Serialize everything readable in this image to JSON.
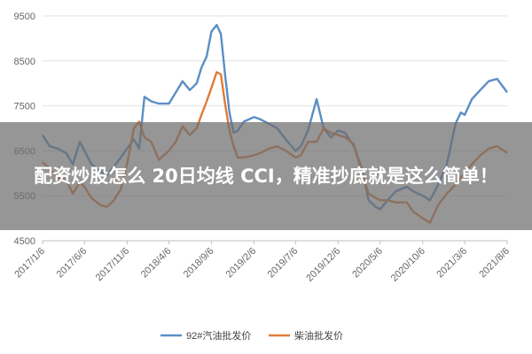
{
  "headline": "配资炒股怎么 20日均线 CCI，精准抄底就是这么简单！",
  "chart_data": {
    "type": "line",
    "ylim": [
      4500,
      9500
    ],
    "yticks": [
      4500,
      5500,
      6500,
      7500,
      8500,
      9500
    ],
    "xlim": [
      "2017-01-06",
      "2021-08-06"
    ],
    "xticks": [
      "2017/1/6",
      "2017/6/6",
      "2017/11/6",
      "2018/4/6",
      "2018/9/6",
      "2019/2/6",
      "2019/7/6",
      "2019/12/6",
      "2020/5/6",
      "2020/10/6",
      "2021/3/6",
      "2021/8/6"
    ],
    "grid": true,
    "legend": "bottom",
    "series": [
      {
        "name": "92#汽油批发价",
        "color": "#5b8ec6",
        "points": [
          [
            "2017-01-06",
            6850
          ],
          [
            "2017-02-01",
            6600
          ],
          [
            "2017-03-01",
            6550
          ],
          [
            "2017-04-01",
            6450
          ],
          [
            "2017-04-25",
            6200
          ],
          [
            "2017-05-20",
            6700
          ],
          [
            "2017-06-06",
            6500
          ],
          [
            "2017-07-01",
            6200
          ],
          [
            "2017-08-01",
            6050
          ],
          [
            "2017-08-25",
            5950
          ],
          [
            "2017-09-20",
            6150
          ],
          [
            "2017-10-15",
            6350
          ],
          [
            "2017-11-06",
            6550
          ],
          [
            "2017-12-01",
            6750
          ],
          [
            "2017-12-20",
            6550
          ],
          [
            "2018-01-08",
            7700
          ],
          [
            "2018-02-01",
            7600
          ],
          [
            "2018-03-01",
            7550
          ],
          [
            "2018-04-06",
            7550
          ],
          [
            "2018-05-01",
            7800
          ],
          [
            "2018-05-25",
            8050
          ],
          [
            "2018-06-20",
            7850
          ],
          [
            "2018-07-15",
            8000
          ],
          [
            "2018-08-01",
            8350
          ],
          [
            "2018-08-20",
            8600
          ],
          [
            "2018-09-06",
            9150
          ],
          [
            "2018-09-25",
            9300
          ],
          [
            "2018-10-10",
            9100
          ],
          [
            "2018-10-25",
            8200
          ],
          [
            "2018-11-10",
            7350
          ],
          [
            "2018-11-25",
            6900
          ],
          [
            "2018-12-10",
            6950
          ],
          [
            "2019-01-01",
            7150
          ],
          [
            "2019-02-06",
            7250
          ],
          [
            "2019-03-01",
            7200
          ],
          [
            "2019-04-01",
            7100
          ],
          [
            "2019-05-01",
            7000
          ],
          [
            "2019-06-01",
            6750
          ],
          [
            "2019-07-06",
            6500
          ],
          [
            "2019-07-25",
            6600
          ],
          [
            "2019-08-20",
            6950
          ],
          [
            "2019-09-20",
            7650
          ],
          [
            "2019-10-15",
            7000
          ],
          [
            "2019-11-10",
            6800
          ],
          [
            "2019-12-06",
            6950
          ],
          [
            "2020-01-01",
            6900
          ],
          [
            "2020-02-01",
            6600
          ],
          [
            "2020-03-01",
            6100
          ],
          [
            "2020-03-25",
            5400
          ],
          [
            "2020-04-20",
            5250
          ],
          [
            "2020-05-06",
            5200
          ],
          [
            "2020-06-01",
            5400
          ],
          [
            "2020-07-01",
            5600
          ],
          [
            "2020-08-10",
            5700
          ],
          [
            "2020-09-01",
            5600
          ],
          [
            "2020-10-06",
            5500
          ],
          [
            "2020-11-01",
            5400
          ],
          [
            "2020-12-01",
            5750
          ],
          [
            "2021-01-01",
            6200
          ],
          [
            "2021-02-01",
            7100
          ],
          [
            "2021-02-20",
            7350
          ],
          [
            "2021-03-06",
            7300
          ],
          [
            "2021-04-01",
            7650
          ],
          [
            "2021-05-01",
            7850
          ],
          [
            "2021-06-01",
            8050
          ],
          [
            "2021-07-01",
            8100
          ],
          [
            "2021-08-06",
            7800
          ]
        ]
      },
      {
        "name": "柴油批发价",
        "color": "#e07b39",
        "points": [
          [
            "2017-01-06",
            6250
          ],
          [
            "2017-02-01",
            6100
          ],
          [
            "2017-03-01",
            5900
          ],
          [
            "2017-04-01",
            5850
          ],
          [
            "2017-04-25",
            5550
          ],
          [
            "2017-05-20",
            5800
          ],
          [
            "2017-06-06",
            5700
          ],
          [
            "2017-07-01",
            5450
          ],
          [
            "2017-08-01",
            5300
          ],
          [
            "2017-08-25",
            5250
          ],
          [
            "2017-09-20",
            5400
          ],
          [
            "2017-10-15",
            5650
          ],
          [
            "2017-11-06",
            6200
          ],
          [
            "2017-12-01",
            7000
          ],
          [
            "2017-12-20",
            7150
          ],
          [
            "2018-01-08",
            6800
          ],
          [
            "2018-02-01",
            6700
          ],
          [
            "2018-03-01",
            6300
          ],
          [
            "2018-04-06",
            6500
          ],
          [
            "2018-05-01",
            6700
          ],
          [
            "2018-05-25",
            7050
          ],
          [
            "2018-06-20",
            6850
          ],
          [
            "2018-07-15",
            7000
          ],
          [
            "2018-08-01",
            7300
          ],
          [
            "2018-08-20",
            7600
          ],
          [
            "2018-09-06",
            7900
          ],
          [
            "2018-09-25",
            8250
          ],
          [
            "2018-10-10",
            8200
          ],
          [
            "2018-10-25",
            7550
          ],
          [
            "2018-11-10",
            6950
          ],
          [
            "2018-11-25",
            6600
          ],
          [
            "2018-12-10",
            6350
          ],
          [
            "2019-01-01",
            6350
          ],
          [
            "2019-02-06",
            6400
          ],
          [
            "2019-03-01",
            6450
          ],
          [
            "2019-04-01",
            6550
          ],
          [
            "2019-05-01",
            6600
          ],
          [
            "2019-06-01",
            6500
          ],
          [
            "2019-07-06",
            6350
          ],
          [
            "2019-07-25",
            6400
          ],
          [
            "2019-08-20",
            6700
          ],
          [
            "2019-09-20",
            6700
          ],
          [
            "2019-10-15",
            7000
          ],
          [
            "2019-11-10",
            6900
          ],
          [
            "2019-12-06",
            6850
          ],
          [
            "2020-01-01",
            6800
          ],
          [
            "2020-02-01",
            6650
          ],
          [
            "2020-03-01",
            6000
          ],
          [
            "2020-03-25",
            5550
          ],
          [
            "2020-04-20",
            5450
          ],
          [
            "2020-05-06",
            5400
          ],
          [
            "2020-06-01",
            5400
          ],
          [
            "2020-07-01",
            5350
          ],
          [
            "2020-08-10",
            5350
          ],
          [
            "2020-09-01",
            5150
          ],
          [
            "2020-10-06",
            5000
          ],
          [
            "2020-11-01",
            4900
          ],
          [
            "2020-12-01",
            5300
          ],
          [
            "2021-01-01",
            5550
          ],
          [
            "2021-02-01",
            5750
          ],
          [
            "2021-02-20",
            5900
          ],
          [
            "2021-03-06",
            6000
          ],
          [
            "2021-04-01",
            6200
          ],
          [
            "2021-05-01",
            6400
          ],
          [
            "2021-06-01",
            6550
          ],
          [
            "2021-07-01",
            6600
          ],
          [
            "2021-08-06",
            6450
          ]
        ]
      }
    ]
  }
}
